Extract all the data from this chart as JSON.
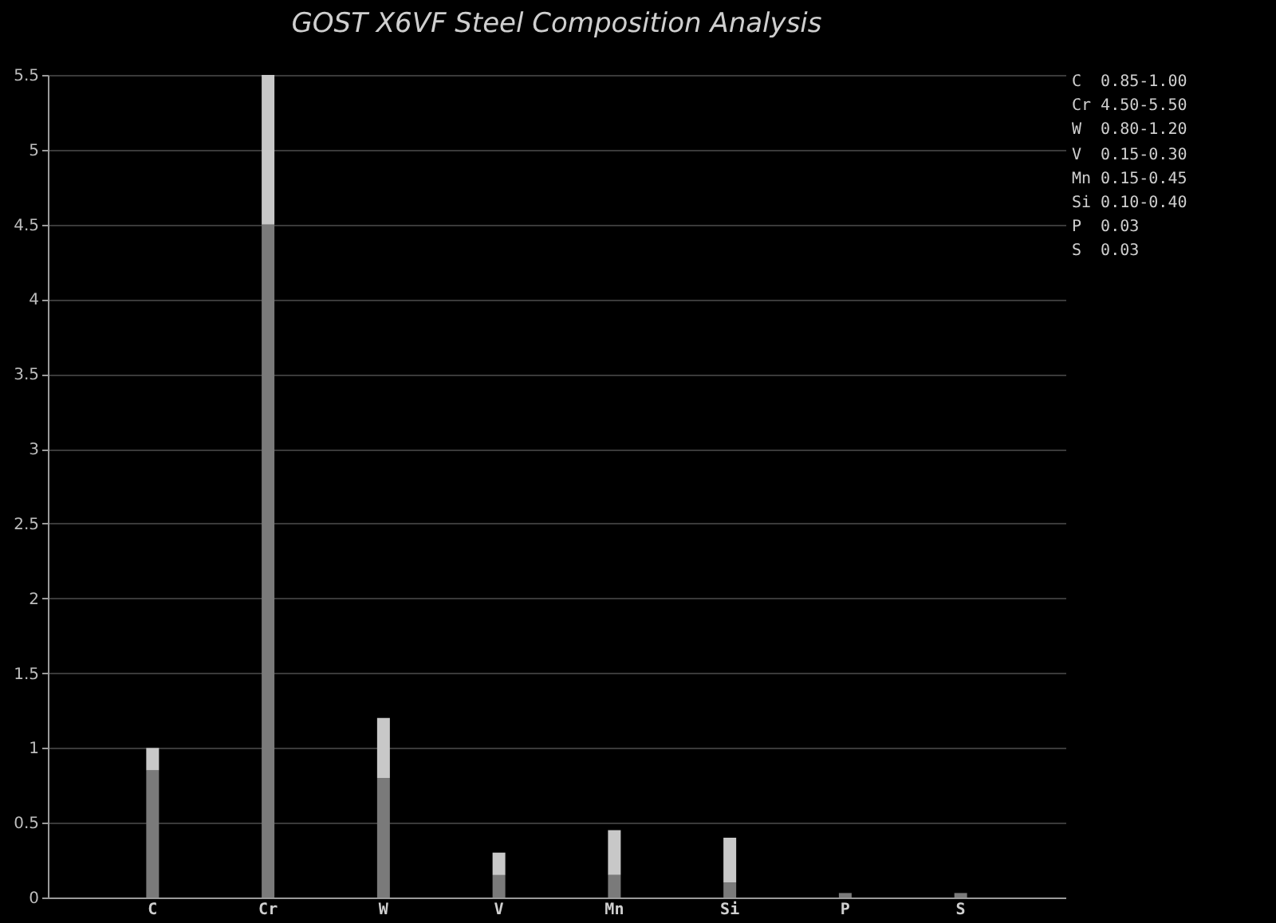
{
  "chart_data": {
    "type": "bar",
    "title": "GOST X6VF Steel Composition Analysis",
    "categories": [
      "C",
      "Cr",
      "W",
      "V",
      "Mn",
      "Si",
      "P",
      "S"
    ],
    "stacked": true,
    "series": [
      {
        "color": "#7a7a7a",
        "values": [
          0.85,
          4.5,
          0.8,
          0.15,
          0.15,
          0.1,
          0.03,
          0.03
        ]
      },
      {
        "color": "#c8c8c8",
        "values": [
          0.15,
          1.0,
          0.4,
          0.15,
          0.3,
          0.3,
          null,
          null
        ]
      }
    ],
    "ylim": [
      0,
      5.5
    ],
    "yticks": [
      0,
      0.5,
      1,
      1.5,
      2,
      2.5,
      3,
      3.5,
      4,
      4.5,
      5,
      5.5
    ],
    "grid": "y",
    "annotations": [
      "C  0.85-1.00",
      "Cr 4.50-5.50",
      "W  0.80-1.20",
      "V  0.15-0.30",
      "Mn 0.15-0.45",
      "Si 0.10-0.40",
      "P  0.03",
      "S  0.03"
    ]
  }
}
